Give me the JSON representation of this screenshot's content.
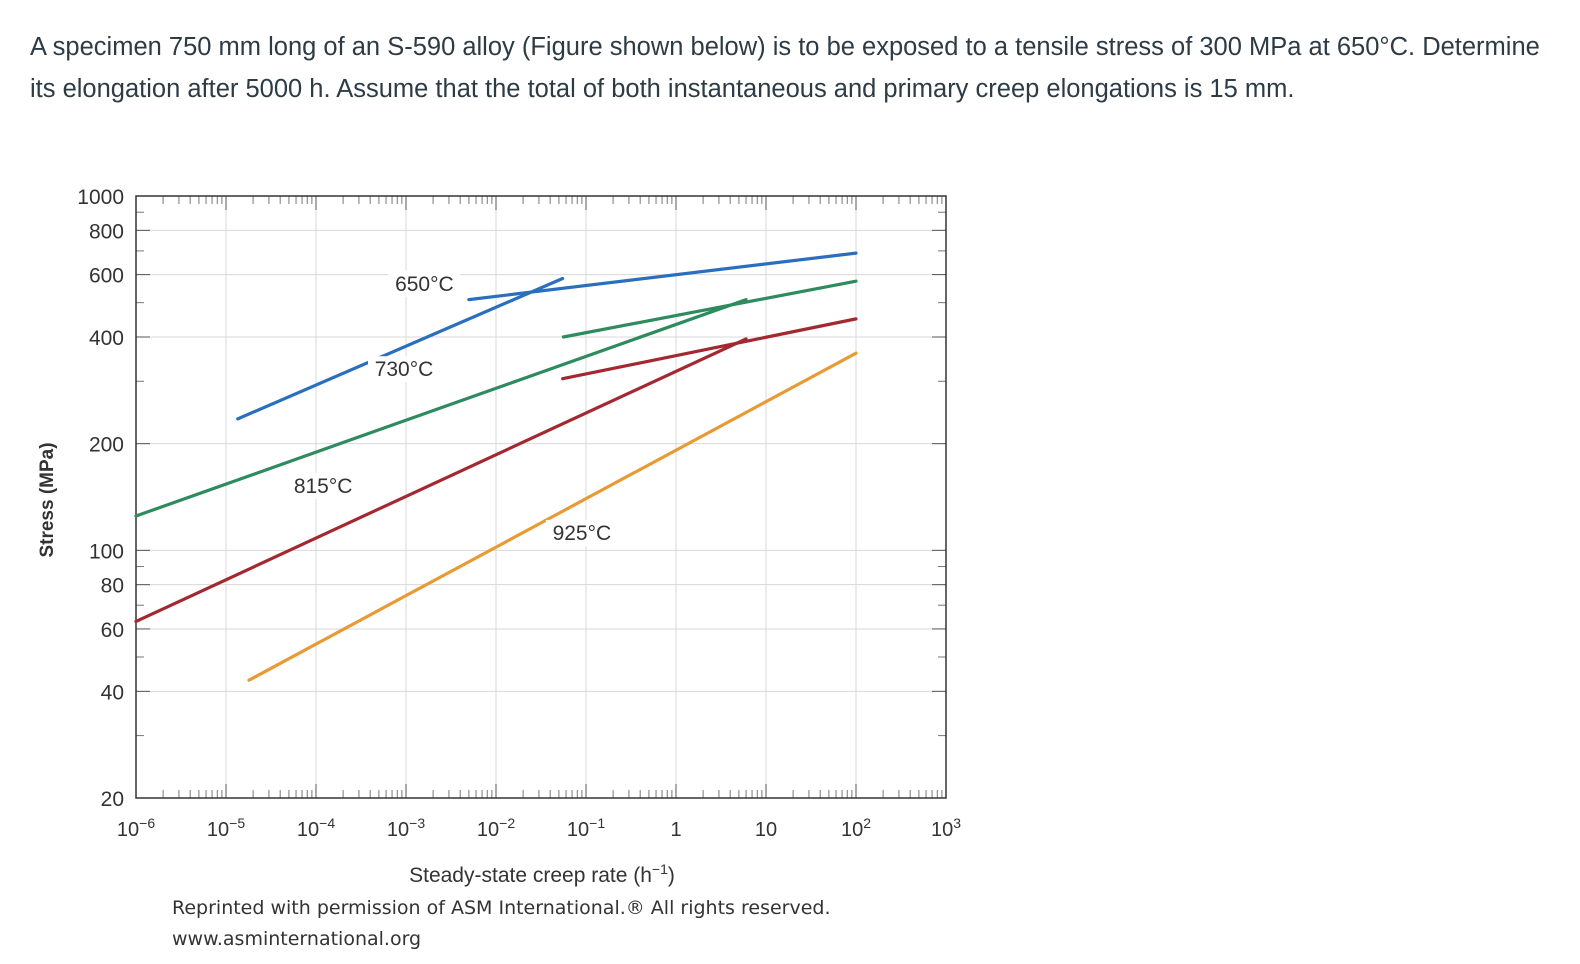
{
  "question": {
    "text": "A specimen 750 mm long of an S-590 alloy (Figure shown below) is to be exposed to a tensile stress of 300 MPa at 650°C. Determine its elongation after 5000 h.  Assume that the total of both instantaneous and primary creep elongations is 15 mm."
  },
  "figure": {
    "credit_line1": "Reprinted with permission of ASM International.® All rights reserved.",
    "credit_line2": "www.asminternational.org"
  },
  "chart_data": {
    "type": "line",
    "title": "",
    "xlabel": "Steady-state creep rate (h⁻¹)",
    "ylabel": "Stress (MPa)",
    "x_scale": "log",
    "y_scale": "log",
    "xlim": [
      1e-06,
      1000
    ],
    "ylim": [
      20,
      1000
    ],
    "grid": true,
    "x_ticks": [
      {
        "value": 1e-06,
        "label": "10⁻⁶"
      },
      {
        "value": 1e-05,
        "label": "10⁻⁵"
      },
      {
        "value": 0.0001,
        "label": "10⁻⁴"
      },
      {
        "value": 0.001,
        "label": "10⁻³"
      },
      {
        "value": 0.01,
        "label": "10⁻²"
      },
      {
        "value": 0.1,
        "label": "10⁻¹"
      },
      {
        "value": 1,
        "label": "1"
      },
      {
        "value": 10,
        "label": "10"
      },
      {
        "value": 100,
        "label": "10²"
      },
      {
        "value": 1000,
        "label": "10³"
      }
    ],
    "y_ticks": [
      {
        "value": 20,
        "label": "20"
      },
      {
        "value": 40,
        "label": "40"
      },
      {
        "value": 60,
        "label": "60"
      },
      {
        "value": 80,
        "label": "80"
      },
      {
        "value": 100,
        "label": "100"
      },
      {
        "value": 200,
        "label": "200"
      },
      {
        "value": 400,
        "label": "400"
      },
      {
        "value": 600,
        "label": "600"
      },
      {
        "value": 800,
        "label": "800"
      },
      {
        "value": 1000,
        "label": "1000"
      }
    ],
    "series": [
      {
        "name": "650°C",
        "color": "#2a6fbd",
        "segments": [
          [
            [
              1.35e-05,
              235
            ],
            [
              0.055,
              585
            ]
          ],
          [
            [
              0.005,
              510
            ],
            [
              100,
              690
            ]
          ]
        ]
      },
      {
        "name": "730°C",
        "color": "#2e8b5e",
        "segments": [
          [
            [
              1e-06,
              125
            ],
            [
              6,
              510
            ]
          ],
          [
            [
              0.056,
              400
            ],
            [
              100,
              575
            ]
          ]
        ]
      },
      {
        "name": "815°C",
        "color": "#a32830",
        "segments": [
          [
            [
              1e-06,
              63
            ],
            [
              6,
              395
            ]
          ],
          [
            [
              0.055,
              305
            ],
            [
              100,
              450
            ]
          ]
        ]
      },
      {
        "name": "925°C",
        "color": "#e89b35",
        "segments": [
          [
            [
              1.8e-05,
              43
            ],
            [
              100,
              360
            ]
          ]
        ]
      }
    ],
    "annotations": [
      {
        "text": "650°C",
        "series": "650°C",
        "x": 0.0016,
        "y": 540
      },
      {
        "text": "730°C",
        "series": "730°C",
        "x": 0.00095,
        "y": 310
      },
      {
        "text": "815°C",
        "series": "815°C",
        "x": 0.00012,
        "y": 145
      },
      {
        "text": "925°C",
        "series": "925°C",
        "x": 0.09,
        "y": 107
      }
    ]
  }
}
